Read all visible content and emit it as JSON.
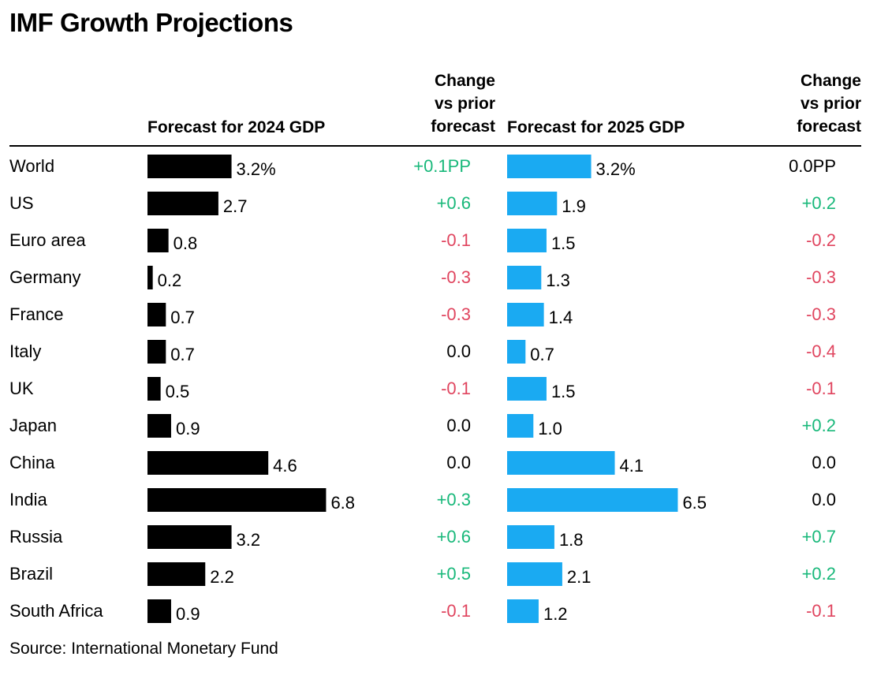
{
  "title": "IMF Growth Projections",
  "source": "Source: International Monetary Fund",
  "colors": {
    "bar2024": "#000000",
    "bar2025": "#1aaaf2",
    "positive": "#18b87a",
    "negative": "#e0455f",
    "neutral": "#000000"
  },
  "chart_data": {
    "type": "bar",
    "orientation": "horizontal",
    "column_headers": {
      "forecast_2024": "Forecast for 2024 GDP",
      "change_2024": [
        "Change",
        "vs prior",
        "forecast"
      ],
      "forecast_2025": "Forecast for 2025 GDP",
      "change_2025": [
        "Change",
        "vs prior",
        "forecast"
      ]
    },
    "categories": [
      "World",
      "US",
      "Euro area",
      "Germany",
      "France",
      "Italy",
      "UK",
      "Japan",
      "China",
      "India",
      "Russia",
      "Brazil",
      "South Africa"
    ],
    "series": [
      {
        "name": "Forecast for 2024 GDP",
        "values": [
          3.2,
          2.7,
          0.8,
          0.2,
          0.7,
          0.7,
          0.5,
          0.9,
          4.6,
          6.8,
          3.2,
          2.2,
          0.9
        ],
        "labels": [
          "3.2%",
          "2.7",
          "0.8",
          "0.2",
          "0.7",
          "0.7",
          "0.5",
          "0.9",
          "4.6",
          "6.8",
          "3.2",
          "2.2",
          "0.9"
        ]
      },
      {
        "name": "Forecast for 2025 GDP",
        "values": [
          3.2,
          1.9,
          1.5,
          1.3,
          1.4,
          0.7,
          1.5,
          1.0,
          4.1,
          6.5,
          1.8,
          2.1,
          1.2
        ],
        "labels": [
          "3.2%",
          "1.9",
          "1.5",
          "1.3",
          "1.4",
          "0.7",
          "1.5",
          "1.0",
          "4.1",
          "6.5",
          "1.8",
          "2.1",
          "1.2"
        ]
      }
    ],
    "changes_2024": [
      {
        "text": "+0.1PP",
        "sign": "positive"
      },
      {
        "text": "+0.6",
        "sign": "positive"
      },
      {
        "text": "-0.1",
        "sign": "negative"
      },
      {
        "text": "-0.3",
        "sign": "negative"
      },
      {
        "text": "-0.3",
        "sign": "negative"
      },
      {
        "text": "0.0",
        "sign": "neutral"
      },
      {
        "text": "-0.1",
        "sign": "negative"
      },
      {
        "text": "0.0",
        "sign": "neutral"
      },
      {
        "text": "0.0",
        "sign": "neutral"
      },
      {
        "text": "+0.3",
        "sign": "positive"
      },
      {
        "text": "+0.6",
        "sign": "positive"
      },
      {
        "text": "+0.5",
        "sign": "positive"
      },
      {
        "text": "-0.1",
        "sign": "negative"
      }
    ],
    "changes_2025": [
      {
        "text": "0.0PP",
        "sign": "neutral"
      },
      {
        "text": "+0.2",
        "sign": "positive"
      },
      {
        "text": "-0.2",
        "sign": "negative"
      },
      {
        "text": "-0.3",
        "sign": "negative"
      },
      {
        "text": "-0.3",
        "sign": "negative"
      },
      {
        "text": "-0.4",
        "sign": "negative"
      },
      {
        "text": "-0.1",
        "sign": "negative"
      },
      {
        "text": "+0.2",
        "sign": "positive"
      },
      {
        "text": "0.0",
        "sign": "neutral"
      },
      {
        "text": "0.0",
        "sign": "neutral"
      },
      {
        "text": "+0.7",
        "sign": "positive"
      },
      {
        "text": "+0.2",
        "sign": "positive"
      },
      {
        "text": "-0.1",
        "sign": "negative"
      }
    ]
  }
}
